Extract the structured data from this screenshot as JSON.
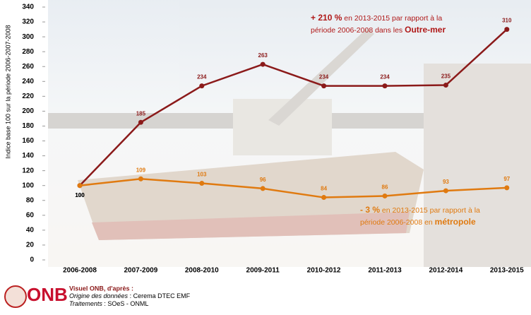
{
  "chart_data": {
    "type": "line",
    "ylabel": "Indice base 100 sur la période 2006-2007-2008",
    "categories": [
      "2006-2008",
      "2007-2009",
      "2008-2010",
      "2009-2011",
      "2010-2012",
      "2011-2013",
      "2012-2014",
      "2013-2015"
    ],
    "series": [
      {
        "name": "Outre-mer",
        "color": "#8b1a1a",
        "values": [
          100,
          185,
          234,
          263,
          234,
          234,
          235,
          310
        ]
      },
      {
        "name": "métropole",
        "color": "#e07a10",
        "values": [
          100,
          109,
          103,
          96,
          84,
          86,
          93,
          97
        ]
      }
    ],
    "ylim": [
      0,
      340
    ],
    "yticks": [
      0,
      20,
      40,
      60,
      80,
      100,
      120,
      140,
      160,
      180,
      200,
      220,
      240,
      260,
      280,
      300,
      320,
      340
    ],
    "annotations": [
      {
        "color": "#b01818",
        "lines": [
          [
            {
              "text": "+ 210 %",
              "bold": true
            },
            {
              "text": " en 2013-2015 par rapport à la",
              "bold": false
            }
          ],
          [
            {
              "text": "période 2006-2008 dans les ",
              "bold": false
            },
            {
              "text": "Outre-mer",
              "bold": true
            }
          ]
        ]
      },
      {
        "color": "#e07a10",
        "lines": [
          [
            {
              "text": "- 3 %",
              "bold": true
            },
            {
              "text": " en 2013-2015 par rapport à la",
              "bold": false
            }
          ],
          [
            {
              "text": "période 2006-2008 en ",
              "bold": false
            },
            {
              "text": "métropole",
              "bold": true
            }
          ]
        ]
      }
    ]
  },
  "footer": {
    "logo": "ONB",
    "heading": "Visuel ONB, d'après :",
    "source_label": "Origine des données",
    "source": " : Cerema DTEC EMF",
    "processing_label": "Traitements",
    "processing": " : SOeS - ONML"
  }
}
